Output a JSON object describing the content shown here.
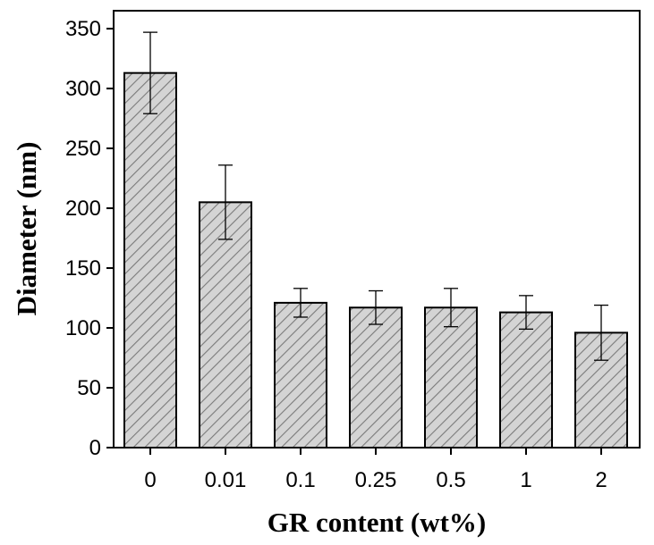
{
  "chart_data": {
    "type": "bar",
    "title": "",
    "xlabel": "GR content (wt%)",
    "ylabel": "Diameter (nm)",
    "categories": [
      "0",
      "0.01",
      "0.1",
      "0.25",
      "0.5",
      "1",
      "2"
    ],
    "values": [
      313,
      205,
      121,
      117,
      117,
      113,
      96
    ],
    "error": [
      34,
      31,
      12,
      14,
      16,
      14,
      23
    ],
    "ylim": [
      0,
      365
    ],
    "yticks": [
      "0",
      "50",
      "100",
      "150",
      "200",
      "250",
      "300",
      "350"
    ],
    "grid": false,
    "legend": "none",
    "bar_fill": "#d4d4d4",
    "bar_hatch": "#7a7a7a",
    "bar_edge": "#000000"
  }
}
